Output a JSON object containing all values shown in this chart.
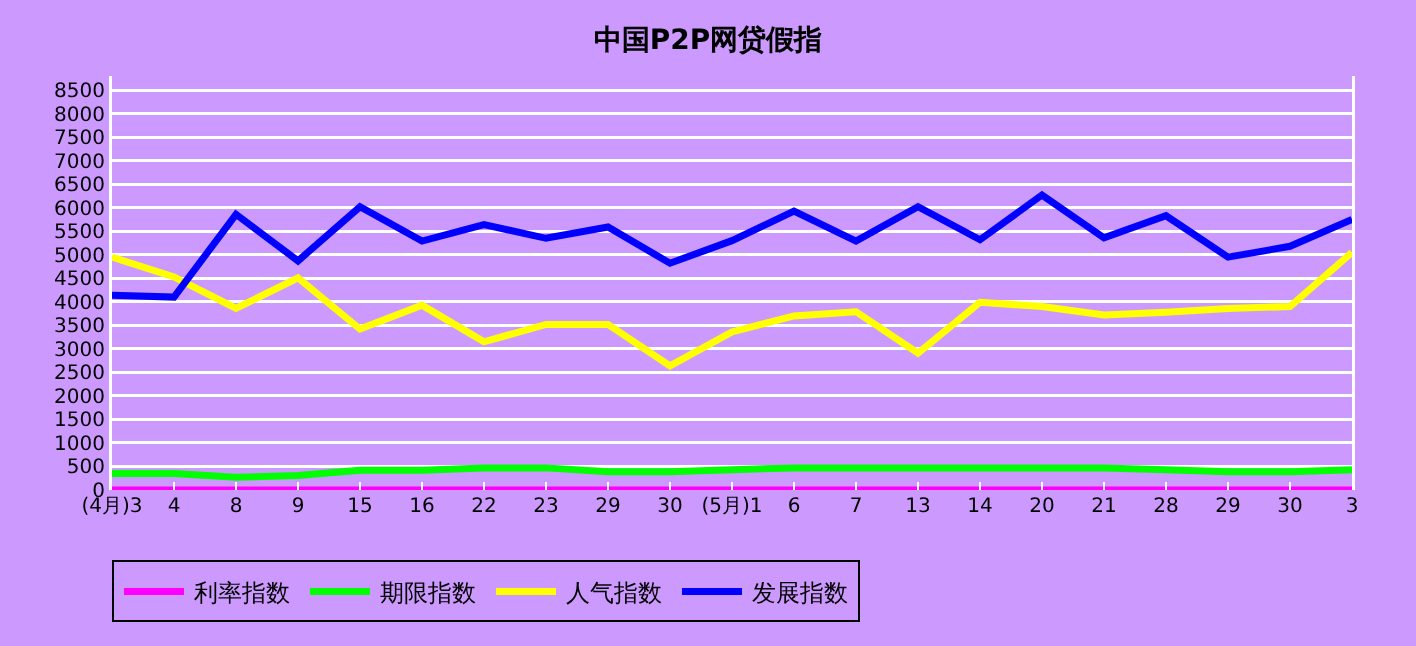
{
  "chart_data": {
    "type": "line",
    "title": "中国P2P网贷假指",
    "categories": [
      "(4月)3",
      "4",
      "8",
      "9",
      "15",
      "16",
      "22",
      "23",
      "29",
      "30",
      "(5月)1",
      "6",
      "7",
      "13",
      "14",
      "20",
      "21",
      "28",
      "29",
      "30",
      "3"
    ],
    "series": [
      {
        "name": "利率指数",
        "color": "#ff00ff",
        "values": [
          0,
          0,
          0,
          0,
          0,
          0,
          0,
          0,
          0,
          0,
          0,
          0,
          0,
          0,
          0,
          0,
          0,
          0,
          0,
          0,
          0
        ]
      },
      {
        "name": "期限指数",
        "color": "#00ff00",
        "values": [
          350,
          350,
          270,
          310,
          420,
          420,
          470,
          470,
          390,
          390,
          430,
          470,
          470,
          470,
          470,
          470,
          470,
          430,
          390,
          390,
          430
        ]
      },
      {
        "name": "人气指数",
        "color": "#ffff00",
        "values": [
          4950,
          4530,
          3860,
          4510,
          3420,
          3930,
          3150,
          3520,
          3520,
          2640,
          3360,
          3700,
          3790,
          2910,
          3990,
          3900,
          3720,
          3780,
          3860,
          3900,
          5050
        ]
      },
      {
        "name": "发展指数",
        "color": "#0000ff",
        "values": [
          4140,
          4100,
          5860,
          4870,
          6020,
          5290,
          5640,
          5350,
          5590,
          4820,
          5300,
          5930,
          5290,
          6020,
          5320,
          6270,
          5360,
          5830,
          4950,
          5180,
          5750
        ]
      }
    ],
    "ylim": [
      0,
      8800
    ],
    "yticks": [
      0,
      500,
      1000,
      1500,
      2000,
      2500,
      3000,
      3500,
      4000,
      4500,
      5000,
      5500,
      6000,
      6500,
      7000,
      7500,
      8000,
      8500
    ],
    "grid": "y",
    "legend": "bottom left",
    "marker": "none",
    "line_style": "solid"
  }
}
